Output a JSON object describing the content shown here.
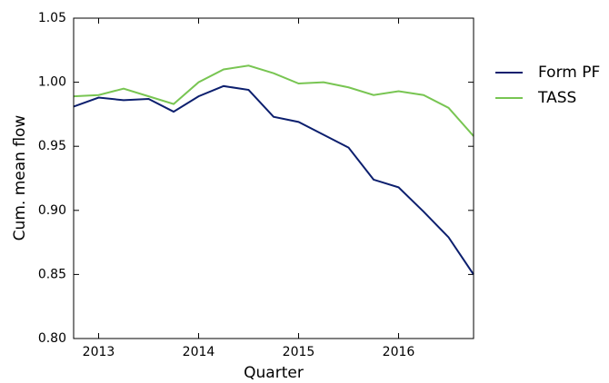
{
  "chart_data": {
    "type": "line",
    "xlabel": "Quarter",
    "ylabel": "Cum. mean flow",
    "x": [
      2012.75,
      2013,
      2013.25,
      2013.5,
      2013.75,
      2014,
      2014.25,
      2014.5,
      2014.75,
      2015,
      2015.25,
      2015.5,
      2015.75,
      2016,
      2016.25,
      2016.5,
      2016.75
    ],
    "series": [
      {
        "name": "Form PF",
        "color": "#0c1f6e",
        "values": [
          0.981,
          0.988,
          0.986,
          0.987,
          0.977,
          0.989,
          0.997,
          0.994,
          0.973,
          0.969,
          0.959,
          0.949,
          0.924,
          0.918,
          0.899,
          0.879,
          0.85
        ]
      },
      {
        "name": "TASS",
        "color": "#78c552",
        "values": [
          0.989,
          0.99,
          0.995,
          0.989,
          0.983,
          1.0,
          1.01,
          1.013,
          1.007,
          0.999,
          1.0,
          0.996,
          0.99,
          0.993,
          0.99,
          0.98,
          0.958
        ]
      }
    ],
    "xlim": [
      2012.75,
      2016.75
    ],
    "xticks": [
      2013,
      2014,
      2015,
      2016
    ],
    "ylim": [
      0.8,
      1.05
    ],
    "yticks": [
      {
        "value": 0.8,
        "label": "0.80"
      },
      {
        "value": 0.85,
        "label": "0.85"
      },
      {
        "value": 0.9,
        "label": "0.90"
      },
      {
        "value": 0.95,
        "label": "0.95"
      },
      {
        "value": 1.0,
        "label": "1.00"
      },
      {
        "value": 1.05,
        "label": "1.05"
      }
    ],
    "legend": "right"
  }
}
